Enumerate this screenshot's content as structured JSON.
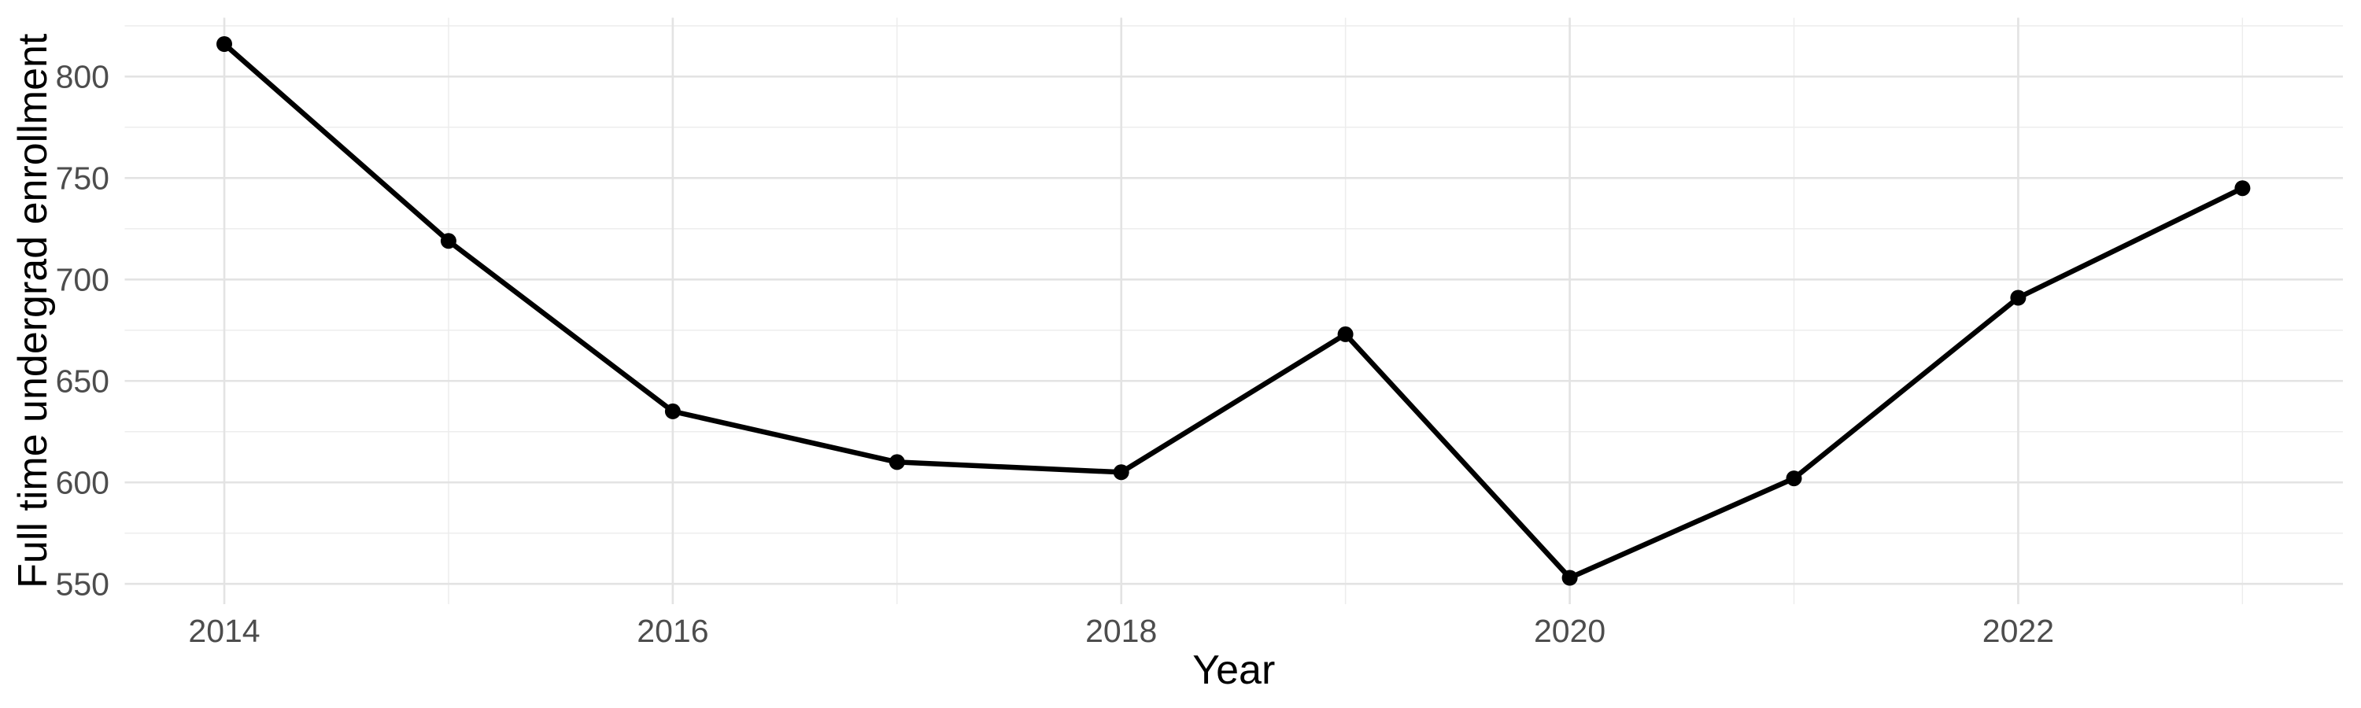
{
  "chart_data": {
    "type": "line",
    "title": "",
    "xlabel": "Year",
    "ylabel": "Full time undergrad enrollment",
    "x": [
      2014,
      2015,
      2016,
      2017,
      2018,
      2019,
      2020,
      2021,
      2022,
      2023
    ],
    "series": [
      {
        "name": "Full time undergrad enrollment",
        "values": [
          816,
          719,
          635,
          610,
          605,
          673,
          553,
          602,
          691,
          745
        ]
      }
    ],
    "x_ticks_major": [
      2014,
      2016,
      2018,
      2020,
      2022
    ],
    "x_ticks_minor": [
      2015,
      2017,
      2019,
      2021,
      2023
    ],
    "y_ticks_major": [
      550,
      600,
      650,
      700,
      750,
      800
    ],
    "y_ticks_minor": [
      575,
      625,
      675,
      725,
      775,
      825
    ],
    "xlim": [
      2013.556,
      2023.448
    ],
    "ylim": [
      540,
      829
    ],
    "grid": true,
    "legend": false,
    "marker": "filled-circle",
    "colors": {
      "line": "#000000",
      "point": "#000000",
      "grid_major": "#E3E3E3",
      "grid_minor": "#EDEDED",
      "tick_text": "#4D4D4D",
      "axis_title": "#000000",
      "background": "#FFFFFF"
    }
  }
}
